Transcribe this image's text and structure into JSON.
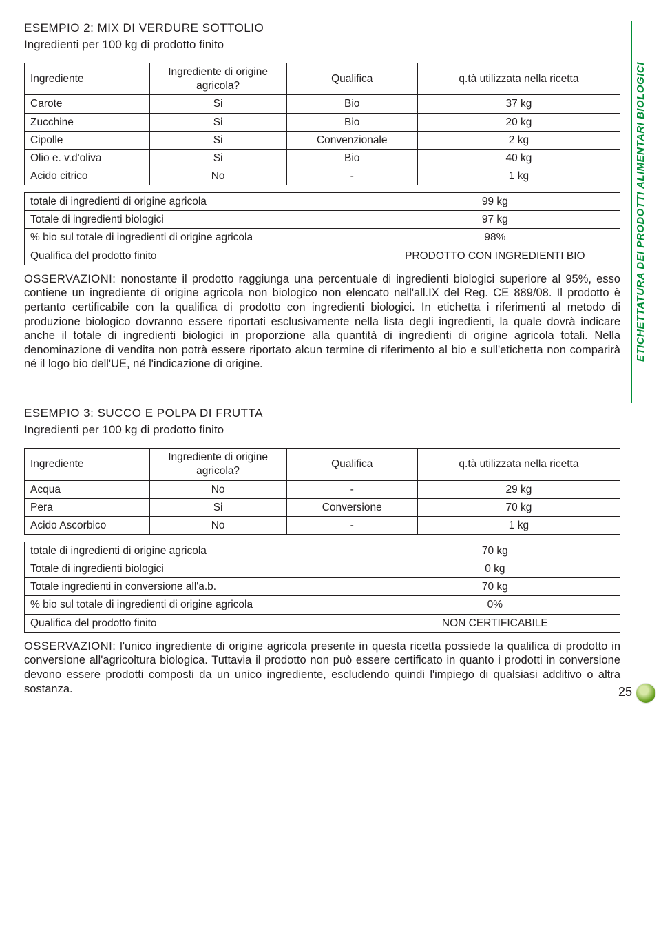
{
  "sideLabel": "ETICHETTATURA DEI PRODOTTI ALIMENTARI BIOLOGICI",
  "pageNumber": "25",
  "colors": {
    "accent": "#008d36",
    "text": "#231f20",
    "background": "#ffffff"
  },
  "example2": {
    "title": "ESEMPIO 2: MIX DI VERDURE SOTTOLIO",
    "subtitle": "Ingredienti per 100 kg di prodotto finito",
    "headers": {
      "col1": "Ingrediente",
      "col2": "Ingrediente di origine agricola?",
      "col3": "Qualifica",
      "col4": "q.tà utilizzata nella ricetta"
    },
    "rows": [
      {
        "c1": "Carote",
        "c2": "Si",
        "c3": "Bio",
        "c4": "37 kg"
      },
      {
        "c1": "Zucchine",
        "c2": "Si",
        "c3": "Bio",
        "c4": "20 kg"
      },
      {
        "c1": "Cipolle",
        "c2": "Si",
        "c3": "Convenzionale",
        "c4": "2 kg"
      },
      {
        "c1": "Olio e. v.d'oliva",
        "c2": "Si",
        "c3": "Bio",
        "c4": "40 kg"
      },
      {
        "c1": "Acido citrico",
        "c2": "No",
        "c3": "-",
        "c4": "1 kg"
      }
    ],
    "summary": [
      {
        "k": "totale di ingredienti di origine agricola",
        "v": "99 kg"
      },
      {
        "k": "Totale di ingredienti biologici",
        "v": "97 kg"
      },
      {
        "k": "% bio sul totale di ingredienti di origine agricola",
        "v": "98%"
      },
      {
        "k": "Qualifica del prodotto finito",
        "v": "PRODOTTO CON INGREDIENTI BIO"
      }
    ],
    "obsLabel": "OSSERVAZIONI:",
    "obsText": " nonostante il prodotto raggiunga una percentuale di ingredienti biologici superiore al 95%, esso contiene un ingrediente di origine agricola non biologico non elencato nell'all.IX del Reg. CE 889/08. Il prodotto è pertanto certificabile con la qualifica di prodotto con ingredienti biologici. In etichetta i riferimenti al metodo di produzione biologico dovranno essere riportati esclusivamente nella lista degli ingredienti, la quale dovrà indicare anche il totale di ingredienti biologici in proporzione alla quantità di ingredienti di origine agricola totali. Nella denominazione di vendita non potrà essere riportato alcun termine di riferimento al bio e sull'etichetta non comparirà né il logo bio dell'UE, né l'indicazione di origine."
  },
  "example3": {
    "title": "ESEMPIO 3: SUCCO E POLPA DI FRUTTA",
    "subtitle": "Ingredienti per 100 kg di prodotto finito",
    "headers": {
      "col1": "Ingrediente",
      "col2": "Ingrediente di origine agricola?",
      "col3": "Qualifica",
      "col4": "q.tà utilizzata nella ricetta"
    },
    "rows": [
      {
        "c1": "Acqua",
        "c2": "No",
        "c3": "-",
        "c4": "29 kg"
      },
      {
        "c1": "Pera",
        "c2": "Si",
        "c3": "Conversione",
        "c4": "70 kg"
      },
      {
        "c1": "Acido Ascorbico",
        "c2": "No",
        "c3": "-",
        "c4": "1 kg"
      }
    ],
    "summary": [
      {
        "k": "totale di ingredienti di origine agricola",
        "v": "70 kg"
      },
      {
        "k": "Totale di ingredienti biologici",
        "v": "0 kg"
      },
      {
        "k": "Totale ingredienti in conversione all'a.b.",
        "v": "70 kg"
      },
      {
        "k": "% bio sul totale di ingredienti di origine agricola",
        "v": "0%"
      },
      {
        "k": "Qualifica del prodotto finito",
        "v": "NON CERTIFICABILE"
      }
    ],
    "obsLabel": "OSSERVAZIONI:",
    "obsText": " l'unico ingrediente di origine agricola presente in questa ricetta possiede la qualifica di prodotto in conversione all'agricoltura biologica. Tuttavia il prodotto non può essere certificato in quanto i prodotti in conversione devono essere prodotti composti da un unico ingrediente, escludendo quindi l'impiego di qualsiasi additivo o altra sostanza."
  }
}
